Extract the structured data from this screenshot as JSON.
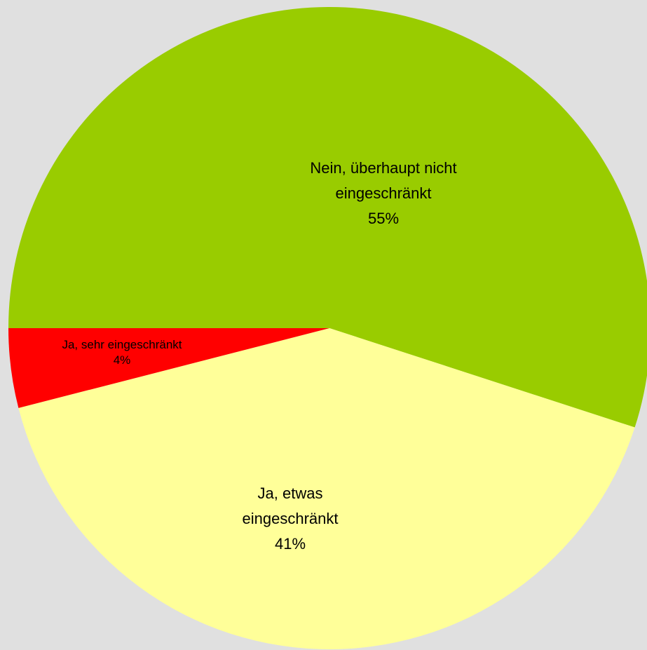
{
  "chart_data": {
    "type": "pie",
    "categories": [
      "Nein, überhaupt nicht eingeschränkt",
      "Ja, etwas eingeschränkt",
      "Ja, sehr eingeschränkt"
    ],
    "values": [
      55,
      41,
      4
    ],
    "value_labels": [
      "55%",
      "41%",
      "4%"
    ],
    "colors": [
      "#99cc00",
      "#ffff99",
      "#ff0000"
    ]
  }
}
